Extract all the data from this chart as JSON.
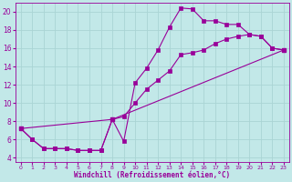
{
  "xlabel": "Windchill (Refroidissement éolien,°C)",
  "xlim": [
    -0.5,
    23.5
  ],
  "ylim": [
    3.5,
    21.0
  ],
  "xticks": [
    0,
    1,
    2,
    3,
    4,
    5,
    6,
    7,
    8,
    9,
    10,
    11,
    12,
    13,
    14,
    15,
    16,
    17,
    18,
    19,
    20,
    21,
    22,
    23
  ],
  "yticks": [
    4,
    6,
    8,
    10,
    12,
    14,
    16,
    18,
    20
  ],
  "background_color": "#c2e8e8",
  "line_color": "#990099",
  "grid_color": "#aad4d4",
  "line1_x": [
    0,
    1,
    2,
    3,
    4,
    5,
    6,
    7,
    8,
    9,
    10,
    11,
    12,
    13,
    14,
    15,
    16,
    17,
    18,
    19,
    20,
    21,
    22,
    23
  ],
  "line1_y": [
    7.2,
    6.0,
    5.0,
    5.0,
    5.0,
    4.8,
    4.8,
    4.8,
    8.2,
    5.8,
    12.2,
    13.8,
    15.8,
    18.3,
    20.4,
    20.3,
    19.0,
    19.0,
    18.6,
    18.6,
    17.5,
    17.3,
    16.0,
    15.8
  ],
  "line2_x": [
    0,
    8,
    23
  ],
  "line2_y": [
    7.2,
    8.2,
    15.8
  ],
  "line3_x": [
    0,
    1,
    2,
    3,
    4,
    5,
    6,
    7,
    8,
    9,
    10,
    11,
    12,
    13,
    14,
    15,
    16,
    17,
    18,
    19,
    20,
    21,
    22,
    23
  ],
  "line3_y": [
    7.2,
    6.0,
    5.0,
    5.0,
    5.0,
    4.8,
    4.8,
    4.8,
    8.2,
    8.5,
    10.0,
    11.5,
    12.5,
    13.5,
    15.3,
    15.5,
    15.8,
    16.5,
    17.0,
    17.3,
    17.5,
    17.3,
    16.0,
    15.8
  ]
}
